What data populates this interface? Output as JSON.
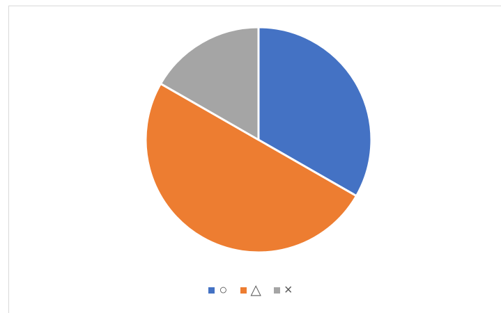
{
  "chart_data": {
    "type": "pie",
    "categories": [
      "○",
      "△",
      "×"
    ],
    "values": [
      33.3,
      50.0,
      16.7
    ],
    "colors": [
      "#4472C4",
      "#ED7D31",
      "#A5A5A5"
    ],
    "legend": "bottom",
    "title": ""
  }
}
